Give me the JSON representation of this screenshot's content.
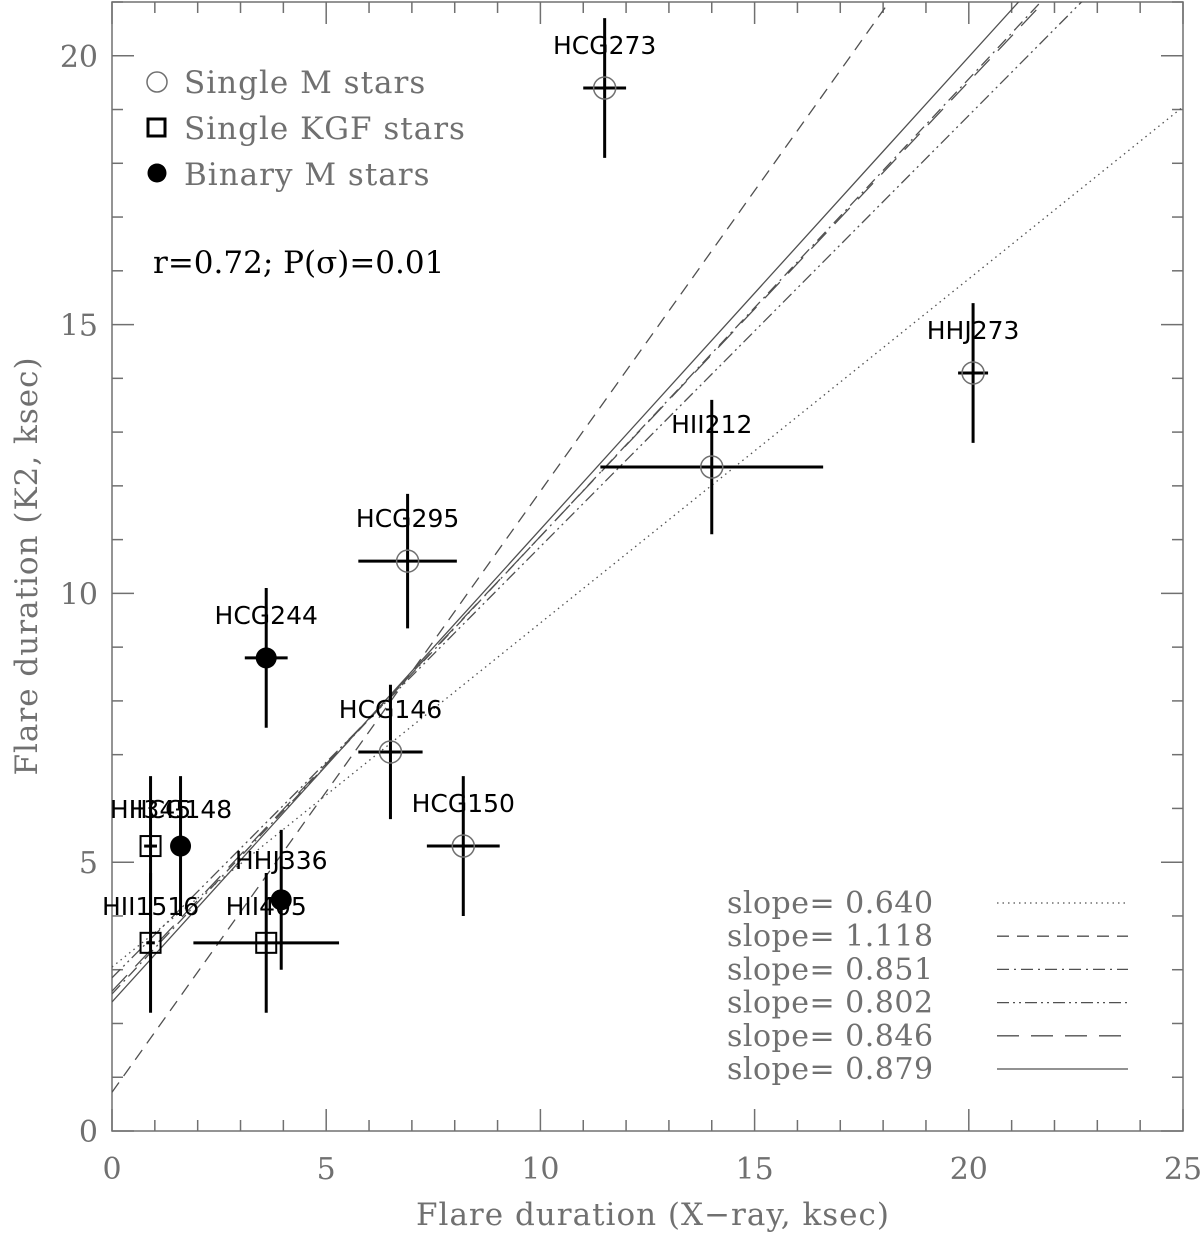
{
  "chart_data": {
    "type": "scatter",
    "title": "",
    "xlabel": "Flare duration (X−ray, ksec)",
    "ylabel": "Flare duration (K2, ksec)",
    "xlim": [
      0,
      25
    ],
    "ylim": [
      0,
      21
    ],
    "xticks": [
      0,
      5,
      10,
      15,
      20,
      25
    ],
    "yticks": [
      0,
      5,
      10,
      15,
      20
    ],
    "xtick_labels": [
      "0",
      "5",
      "10",
      "15",
      "20",
      "25"
    ],
    "ytick_labels": [
      "0",
      "5",
      "10",
      "15",
      "20"
    ],
    "grid": false,
    "legend_position": "top-left",
    "legend": [
      {
        "marker": "open-circle",
        "label": "Single M stars"
      },
      {
        "marker": "open-square",
        "label": "Single KGF stars"
      },
      {
        "marker": "filled-circle",
        "label": "Binary M stars"
      }
    ],
    "annotation": "r=0.72; P(σ)=0.01",
    "points": [
      {
        "name": "HCG273",
        "type": "open-circle",
        "x": 11.5,
        "y": 19.4,
        "xerr": 0.5,
        "yerr": 1.3
      },
      {
        "name": "HHJ273",
        "type": "open-circle",
        "x": 20.1,
        "y": 14.1,
        "xerr": 0.35,
        "yerr": 1.3
      },
      {
        "name": "HII212",
        "type": "open-circle",
        "x": 14.0,
        "y": 12.35,
        "xerr": 2.6,
        "yerr": 1.25
      },
      {
        "name": "HCG295",
        "type": "open-circle",
        "x": 6.9,
        "y": 10.6,
        "xerr": 1.15,
        "yerr": 1.25
      },
      {
        "name": "HCG244",
        "type": "filled-circle",
        "x": 3.6,
        "y": 8.8,
        "xerr": 0.5,
        "yerr": 1.3
      },
      {
        "name": "HCG146",
        "type": "open-circle",
        "x": 6.5,
        "y": 7.05,
        "xerr": 0.75,
        "yerr": 1.25
      },
      {
        "name": "HCG150",
        "type": "open-circle",
        "x": 8.2,
        "y": 5.3,
        "xerr": 0.85,
        "yerr": 1.3
      },
      {
        "name": "HHJ336",
        "type": "filled-circle",
        "x": 3.95,
        "y": 4.3,
        "xerr": 0.15,
        "yerr": 1.3
      },
      {
        "name": "HII405",
        "type": "open-square",
        "x": 3.6,
        "y": 3.5,
        "xerr": 1.7,
        "yerr": 1.3
      },
      {
        "name": "HII1516",
        "type": "open-square",
        "x": 0.9,
        "y": 3.5,
        "xerr": 0.1,
        "yerr": 1.3
      },
      {
        "name": "HII345",
        "type": "open-square",
        "x": 0.9,
        "y": 5.3,
        "xerr": 0.15,
        "yerr": 1.3
      },
      {
        "name": "HCG148",
        "type": "filled-circle",
        "x": 1.6,
        "y": 5.3,
        "xerr": 0.1,
        "yerr": 1.3
      }
    ],
    "fits": [
      {
        "label": "slope=  0.640",
        "slope": 0.64,
        "intercept": 3.05,
        "style": "dotted"
      },
      {
        "label": "slope=  1.118",
        "slope": 1.118,
        "intercept": 0.72,
        "style": "short-dash"
      },
      {
        "label": "slope=  0.851",
        "slope": 0.851,
        "intercept": 2.55,
        "style": "dash-dot"
      },
      {
        "label": "slope=  0.802",
        "slope": 0.802,
        "intercept": 2.85,
        "style": "dash-dot-dot"
      },
      {
        "label": "slope=  0.846",
        "slope": 0.846,
        "intercept": 2.6,
        "style": "long-dash"
      },
      {
        "label": "slope=  0.879",
        "slope": 0.879,
        "intercept": 2.4,
        "style": "solid"
      }
    ]
  }
}
